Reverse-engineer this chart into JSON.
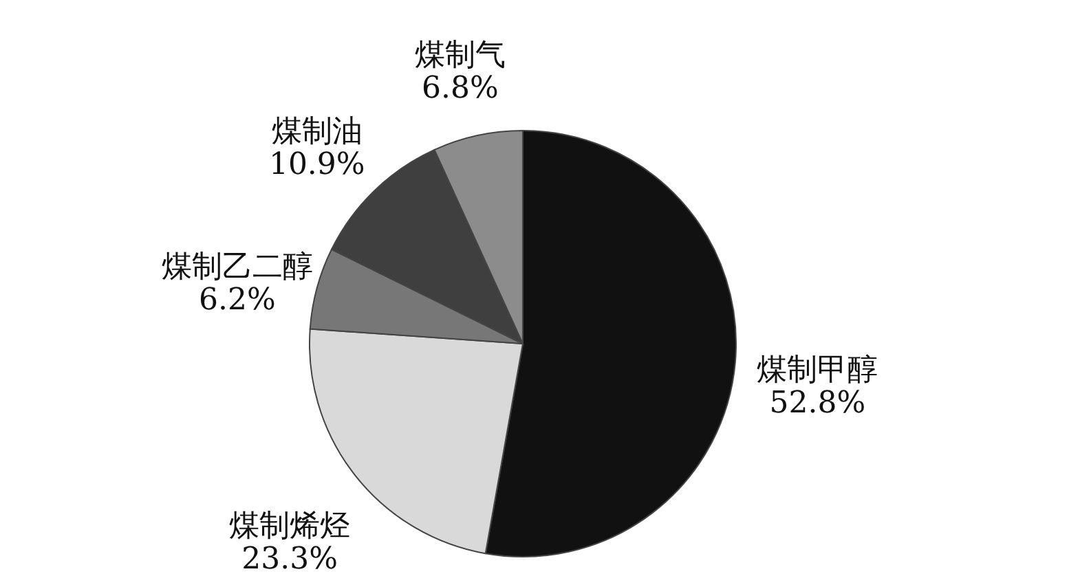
{
  "chart_data": {
    "type": "pie",
    "categories": [
      "煤制甲醇",
      "煤制烯烃",
      "煤制乙二醇",
      "煤制油",
      "煤制气"
    ],
    "values": [
      52.8,
      23.3,
      6.2,
      10.9,
      6.8
    ],
    "colors": [
      "#111111",
      "#d9d9d9",
      "#777777",
      "#3f3f3f",
      "#8c8c8c"
    ],
    "value_labels": [
      "52.8%",
      "23.3%",
      "6.2%",
      "10.9%",
      "6.8%"
    ]
  }
}
